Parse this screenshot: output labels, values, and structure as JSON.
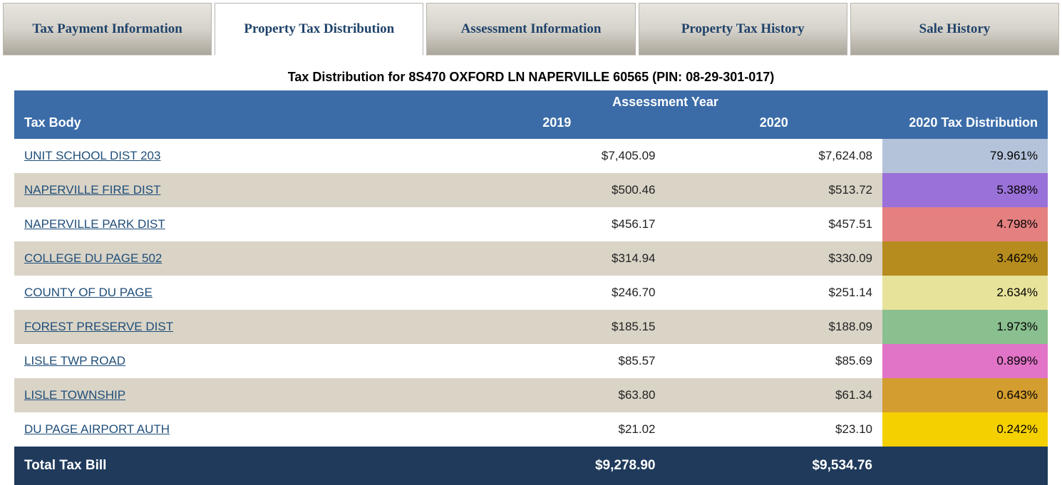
{
  "tabs": [
    {
      "label": "Tax Payment Information",
      "active": false
    },
    {
      "label": "Property Tax Distribution",
      "active": true
    },
    {
      "label": "Assessment Information",
      "active": false
    },
    {
      "label": "Property Tax History",
      "active": false
    },
    {
      "label": "Sale History",
      "active": false
    }
  ],
  "title": "Tax Distribution for 8S470 OXFORD LN NAPERVILLE 60565 (PIN: 08-29-301-017)",
  "header": {
    "super": "Assessment Year",
    "tax_body": "Tax Body",
    "y2019": "2019",
    "y2020": "2020",
    "dist": "2020 Tax Distribution"
  },
  "rows": [
    {
      "body": "UNIT SCHOOL DIST 203",
      "y2019": "$7,405.09",
      "y2020": "$7,624.08",
      "dist": "79.961%",
      "dist_color": "#b4c3da"
    },
    {
      "body": "NAPERVILLE FIRE DIST",
      "y2019": "$500.46",
      "y2020": "$513.72",
      "dist": "5.388%",
      "dist_color": "#9a71d8"
    },
    {
      "body": "NAPERVILLE PARK DIST",
      "y2019": "$456.17",
      "y2020": "$457.51",
      "dist": "4.798%",
      "dist_color": "#e58080"
    },
    {
      "body": "COLLEGE DU PAGE 502",
      "y2019": "$314.94",
      "y2020": "$330.09",
      "dist": "3.462%",
      "dist_color": "#b68c1e"
    },
    {
      "body": "COUNTY OF DU PAGE",
      "y2019": "$246.70",
      "y2020": "$251.14",
      "dist": "2.634%",
      "dist_color": "#e8e39a"
    },
    {
      "body": "FOREST PRESERVE DIST",
      "y2019": "$185.15",
      "y2020": "$188.09",
      "dist": "1.973%",
      "dist_color": "#8abf8f"
    },
    {
      "body": "LISLE TWP ROAD",
      "y2019": "$85.57",
      "y2020": "$85.69",
      "dist": "0.899%",
      "dist_color": "#e274c8"
    },
    {
      "body": "LISLE TOWNSHIP",
      "y2019": "$63.80",
      "y2020": "$61.34",
      "dist": "0.643%",
      "dist_color": "#d49d2f"
    },
    {
      "body": "DU PAGE AIRPORT AUTH",
      "y2019": "$21.02",
      "y2020": "$23.10",
      "dist": "0.242%",
      "dist_color": "#f5d000"
    }
  ],
  "total": {
    "label": "Total Tax Bill",
    "y2019": "$9,278.90",
    "y2020": "$9,534.76"
  },
  "colors": {
    "tab_text": "#20436a",
    "header_bg": "#3b6ca8",
    "row_alt_bg": "#dad4c7",
    "total_bg": "#1f3a5b",
    "link_color": "#1f4e79"
  }
}
